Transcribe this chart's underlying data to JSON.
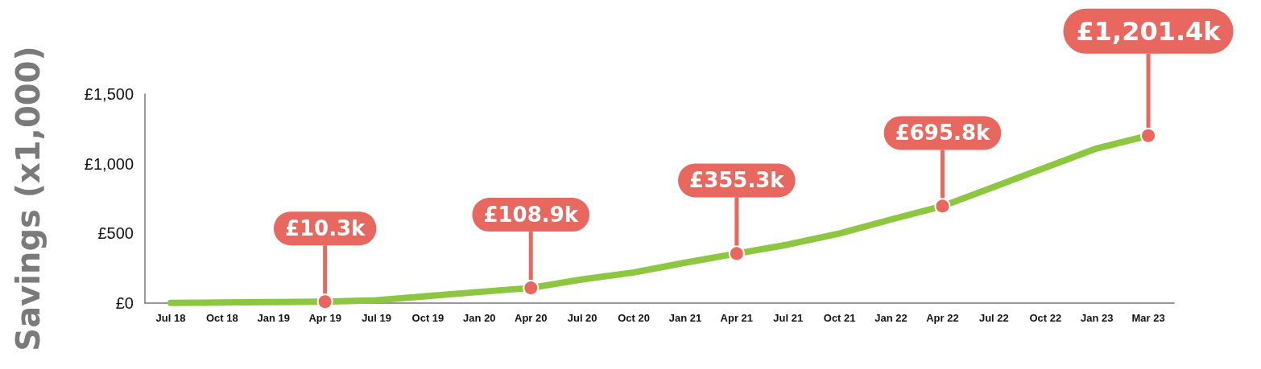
{
  "chart_data": {
    "type": "line",
    "ylabel": "Savings (x1,000)",
    "categories": [
      "Jul 18",
      "Oct 18",
      "Jan 19",
      "Apr 19",
      "Jul 19",
      "Oct 19",
      "Jan 20",
      "Apr 20",
      "Jul 20",
      "Oct 20",
      "Jan 21",
      "Apr 21",
      "Jul 21",
      "Oct 21",
      "Jan 22",
      "Apr 22",
      "Jul 22",
      "Oct 22",
      "Jan 23",
      "Mar 23"
    ],
    "series": [
      {
        "color": "#8dc63f",
        "values": [
          2,
          4,
          7,
          10.3,
          20,
          50,
          80,
          108.9,
          170,
          220,
          290,
          355.3,
          420,
          500,
          600,
          695.8,
          834,
          972,
          1110,
          1201.4
        ],
        "value_labels": [
          null,
          null,
          null,
          "£10.3k",
          null,
          null,
          null,
          "£108.9k",
          null,
          null,
          null,
          "£355.3k",
          null,
          null,
          null,
          "£695.8k",
          null,
          null,
          null,
          "£1,201.4k"
        ]
      }
    ],
    "ylim": [
      0,
      1500
    ],
    "yticks": [
      {
        "value": 0,
        "label": "£0"
      },
      {
        "value": 500,
        "label": "£500"
      },
      {
        "value": 1000,
        "label": "£1,000"
      },
      {
        "value": 1500,
        "label": "£1,500"
      }
    ],
    "grid": false
  }
}
